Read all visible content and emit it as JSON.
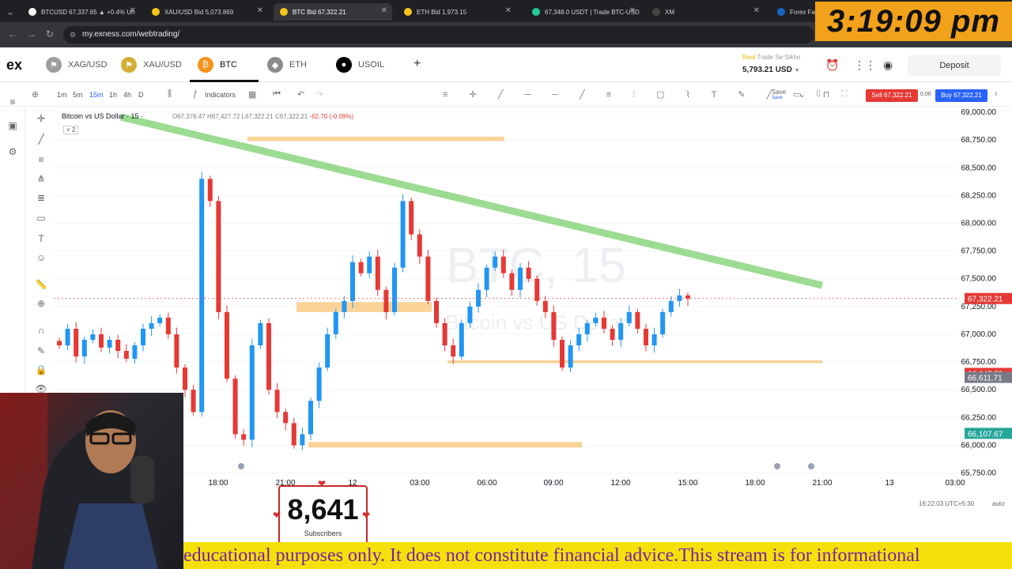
{
  "browser": {
    "tabs": [
      {
        "label": "BTCUSD 67,337.65 ▲ +0.4% Un",
        "favicon_color": "#ffffff",
        "active": false
      },
      {
        "label": "XAU/USD Bid 5,073.869",
        "favicon_color": "#f5c518",
        "active": false
      },
      {
        "label": "BTC Bid 67,322.21",
        "favicon_color": "#f5c518",
        "active": true
      },
      {
        "label": "ETH Bid 1,973.15",
        "favicon_color": "#f5c518",
        "active": false
      },
      {
        "label": "67,348.0 USDT | Trade BTC-USD",
        "favicon_color": "#20c997",
        "active": false
      },
      {
        "label": "XM",
        "favicon_color": "#444444",
        "active": false
      },
      {
        "label": "Forex Fact",
        "favicon_color": "#1565c0",
        "active": false
      }
    ],
    "url": "my.exness.com/webtrading/"
  },
  "clock": "3:19:09 pm",
  "header": {
    "logo": "ex",
    "instruments": [
      {
        "label": "XAG/USD",
        "icon": "flag-coin-icon",
        "color": "#9e9e9e"
      },
      {
        "label": "XAU/USD",
        "icon": "flag-coin-icon",
        "color": "#d4af37"
      },
      {
        "label": "BTC",
        "icon": "bitcoin-icon",
        "color": "#f7931a"
      },
      {
        "label": "ETH",
        "icon": "ethereum-icon",
        "color": "#8c8c8c"
      },
      {
        "label": "USOIL",
        "icon": "oil-drop-icon",
        "color": "#000000"
      }
    ],
    "add_symbol": "+",
    "account_prefix": "Real",
    "account_name": "Trade Se Sikho",
    "balance": "5,793.21 USD",
    "deposit_label": "Deposit"
  },
  "toolbar": {
    "timeframes": [
      "1m",
      "5m",
      "15m",
      "1h",
      "4h",
      "D"
    ],
    "active_timeframe": "15m",
    "indicators_label": "Indicators",
    "save_label": "Save",
    "save_sub": "Save",
    "sell_label": "Sell 67,322.21",
    "spread": "0.00",
    "buy_label": "Buy 67,322.21"
  },
  "chart_data": {
    "type": "candlestick",
    "symbol_title": "Bitcoin vs US Dollar · 15 ·",
    "ohlc_line": {
      "o": "O67,376.47",
      "h": "H67,427.72",
      "l": "L67,322.21",
      "c": "C67,322.21",
      "change": "-62.70 (-0.09%)"
    },
    "indicator_count": "˅ 2",
    "watermark_line1": "BTC, 15",
    "watermark_line2": "Bitcoin vs US Dollar",
    "y_ticks": [
      "69,000.00",
      "68,750.00",
      "68,500.00",
      "68,250.00",
      "68,000.00",
      "67,750.00",
      "67,500.00",
      "67,250.00",
      "67,000.00",
      "66,750.00",
      "66,500.00",
      "66,250.00",
      "66,000.00",
      "65,750.00"
    ],
    "ylim": [
      65740,
      69050
    ],
    "x_ticks": [
      "18:00",
      "21:00",
      "12",
      "03:00",
      "06:00",
      "09:00",
      "12:00",
      "15:00",
      "18:00",
      "21:00",
      "13",
      "03:00"
    ],
    "price_labels": [
      {
        "value": "67,322.21",
        "price": 67322.21,
        "color": "#e53935"
      },
      {
        "value": "66,647.79",
        "price": 66647.79,
        "color": "#e53935"
      },
      {
        "value": "66,611.71",
        "price": 66611.71,
        "color": "#787b86"
      },
      {
        "value": "66,107.67",
        "price": 66107.67,
        "color": "#26a69a"
      }
    ],
    "zones": [
      {
        "name": "resistance-zone-top",
        "price_top": 68780,
        "price_bottom": 68740
      },
      {
        "name": "supply-zone-mid",
        "price_top": 67290,
        "price_bottom": 67200
      },
      {
        "name": "support-line",
        "price_top": 66765,
        "price_bottom": 66740
      },
      {
        "name": "demand-zone-low",
        "price_top": 66030,
        "price_bottom": 65980
      }
    ],
    "trendline": {
      "from_price": 69000,
      "to_price": 67440,
      "color": "#7ccf6e"
    },
    "up_color": "#2196f3",
    "down_color": "#e53935",
    "close_series": [
      66900,
      67050,
      66800,
      66950,
      67000,
      66880,
      66950,
      66850,
      66780,
      66900,
      67050,
      67100,
      67150,
      67000,
      66700,
      66500,
      66300,
      68400,
      68200,
      67200,
      66600,
      66100,
      66050,
      66900,
      67100,
      66500,
      66300,
      66200,
      66000,
      66100,
      66400,
      66700,
      67000,
      67200,
      67300,
      67650,
      67550,
      67700,
      67400,
      67200,
      67600,
      68200,
      67900,
      67700,
      67300,
      67100,
      66900,
      66800,
      67100,
      67250,
      67400,
      67600,
      67700,
      67550,
      67400,
      67600,
      67500,
      67300,
      67200,
      66950,
      66700,
      66900,
      67000,
      67100,
      67150,
      67050,
      66950,
      67100,
      67200,
      67050,
      66900,
      67000,
      67200,
      67300,
      67350,
      67322
    ]
  },
  "footer": {
    "timestamp": "16:22:03 UTC+5:30",
    "scale_mode": "auto"
  },
  "stream": {
    "subscriber_count": "8,641",
    "subscriber_label": "Subscribers",
    "ticker_text": "educational purposes only. It does not constitute financial advice.This stream is for informational"
  }
}
